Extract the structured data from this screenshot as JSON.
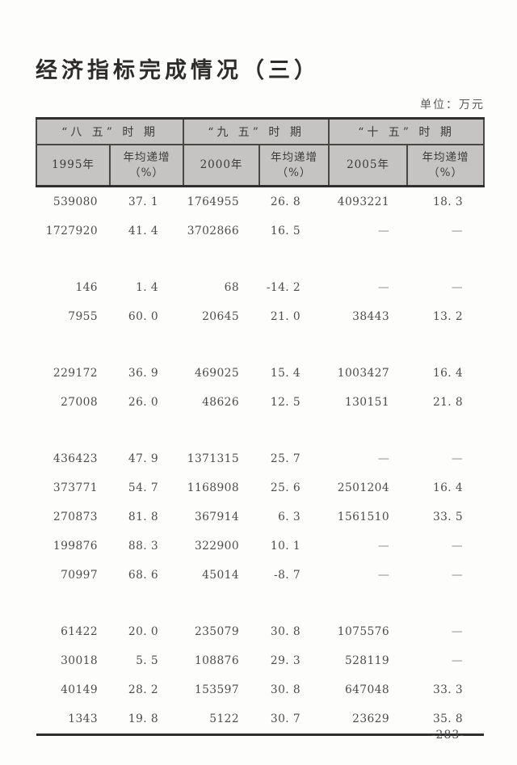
{
  "page": {
    "title": "经济指标完成情况（三）",
    "unit_label": "单位：万元",
    "page_number": "-283-"
  },
  "colors": {
    "header_bg": "#c6c4c2",
    "border_dark": "#2f2f2f",
    "border_mid": "#4a4845"
  },
  "table": {
    "header": {
      "periods": [
        "“八 五” 时 期",
        "“九 五” 时 期",
        "“十 五” 时 期"
      ],
      "columns": [
        {
          "year": "1995年",
          "rate_line1": "年均递增",
          "rate_line2": "（%）"
        },
        {
          "year": "2000年",
          "rate_line1": "年均递增",
          "rate_line2": "（%）"
        },
        {
          "year": "2005年",
          "rate_line1": "年均递增",
          "rate_line2": "（%）"
        }
      ]
    },
    "rows": [
      [
        "539080",
        "37. 1",
        "1764955",
        "26. 8",
        "4093221",
        "18. 3"
      ],
      [
        "1727920",
        "41. 4",
        "3702866",
        "16. 5",
        "—",
        "—"
      ],
      null,
      [
        "146",
        "1. 4",
        "68",
        "-14. 2",
        "—",
        "—"
      ],
      [
        "7955",
        "60. 0",
        "20645",
        "21. 0",
        "38443",
        "13. 2"
      ],
      null,
      [
        "229172",
        "36. 9",
        "469025",
        "15. 4",
        "1003427",
        "16. 4"
      ],
      [
        "27008",
        "26. 0",
        "48626",
        "12. 5",
        "130151",
        "21. 8"
      ],
      null,
      [
        "436423",
        "47. 9",
        "1371315",
        "25. 7",
        "—",
        "—"
      ],
      [
        "373771",
        "54. 7",
        "1168908",
        "25. 6",
        "2501204",
        "16. 4"
      ],
      [
        "270873",
        "81. 8",
        "367914",
        "6. 3",
        "1561510",
        "33. 5"
      ],
      [
        "199876",
        "88. 3",
        "322900",
        "10. 1",
        "—",
        "—"
      ],
      [
        "70997",
        "68. 6",
        "45014",
        "-8. 7",
        "—",
        "—"
      ],
      null,
      [
        "61422",
        "20. 0",
        "235079",
        "30. 8",
        "1075576",
        "—"
      ],
      [
        "30018",
        "5. 5",
        "108876",
        "29. 3",
        "528119",
        "—"
      ],
      [
        "40149",
        "28. 2",
        "153597",
        "30. 8",
        "647048",
        "33. 3"
      ],
      [
        "1343",
        "19. 8",
        "5122",
        "30. 7",
        "23629",
        "35. 8"
      ]
    ]
  }
}
